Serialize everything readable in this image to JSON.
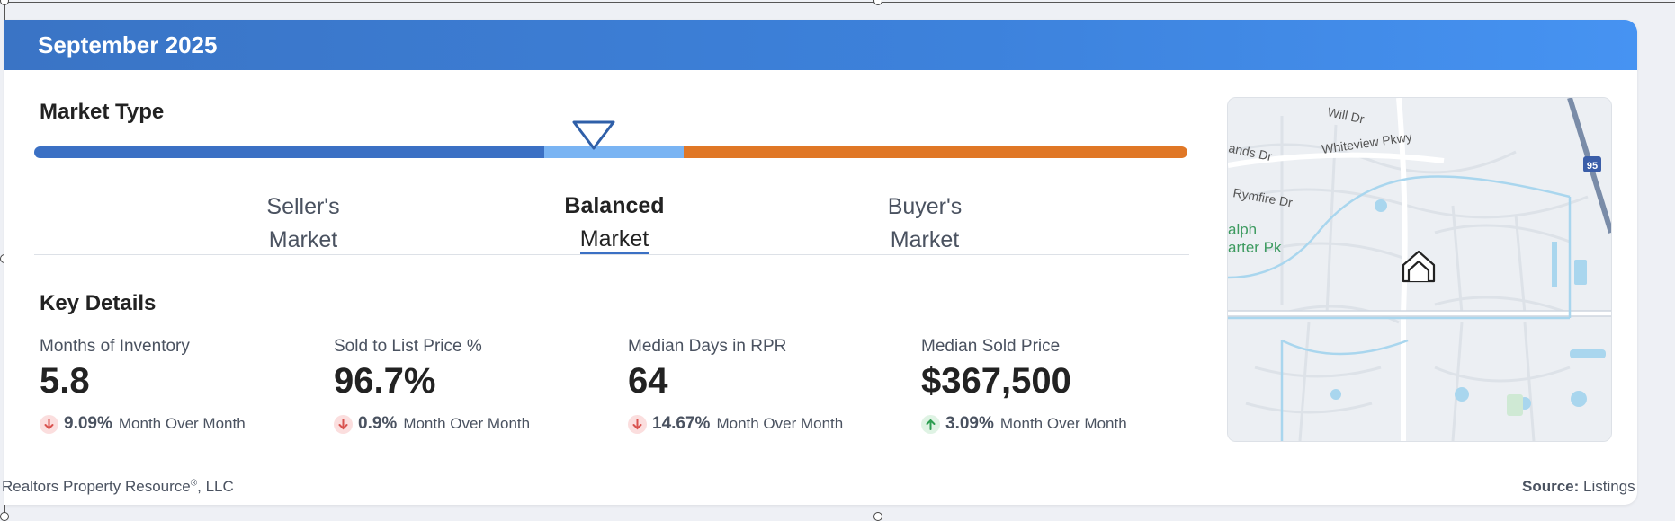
{
  "header": {
    "title": "September 2025"
  },
  "market_type": {
    "title": "Market Type",
    "segments": [
      {
        "line1": "Seller's",
        "line2": "Market"
      },
      {
        "line1": "Balanced",
        "line2": "Market"
      },
      {
        "line1": "Buyer's",
        "line2": "Market"
      }
    ],
    "selected": "Balanced Market",
    "colors": {
      "seller": "#3b70c4",
      "balanced": "#7ab4f3",
      "buyer": "#e07726"
    }
  },
  "key_details": {
    "title": "Key Details",
    "metrics": [
      {
        "label": "Months of Inventory",
        "value": "5.8",
        "change": "9.09%",
        "direction": "down",
        "period": "Month Over Month"
      },
      {
        "label": "Sold to List Price %",
        "value": "96.7%",
        "change": "0.9%",
        "direction": "down",
        "period": "Month Over Month"
      },
      {
        "label": "Median Days in RPR",
        "value": "64",
        "change": "14.67%",
        "direction": "down",
        "period": "Month Over Month"
      },
      {
        "label": "Median Sold Price",
        "value": "$367,500",
        "change": "3.09%",
        "direction": "up",
        "period": "Month Over Month"
      }
    ]
  },
  "map": {
    "labels": {
      "street1": "Will Dr",
      "street2": "Whiteview Pkwy",
      "street3": "ands Dr",
      "street4": "Rymfire Dr",
      "park_line1": "alph",
      "park_line2": "arter Pk",
      "highway": "95"
    },
    "marker_icon": "home-marker-icon"
  },
  "footer": {
    "company": "Realtors Property Resource",
    "company_suffix": ", LLC",
    "registered": "®",
    "source_label": "Source:",
    "source_value": "Listings"
  }
}
